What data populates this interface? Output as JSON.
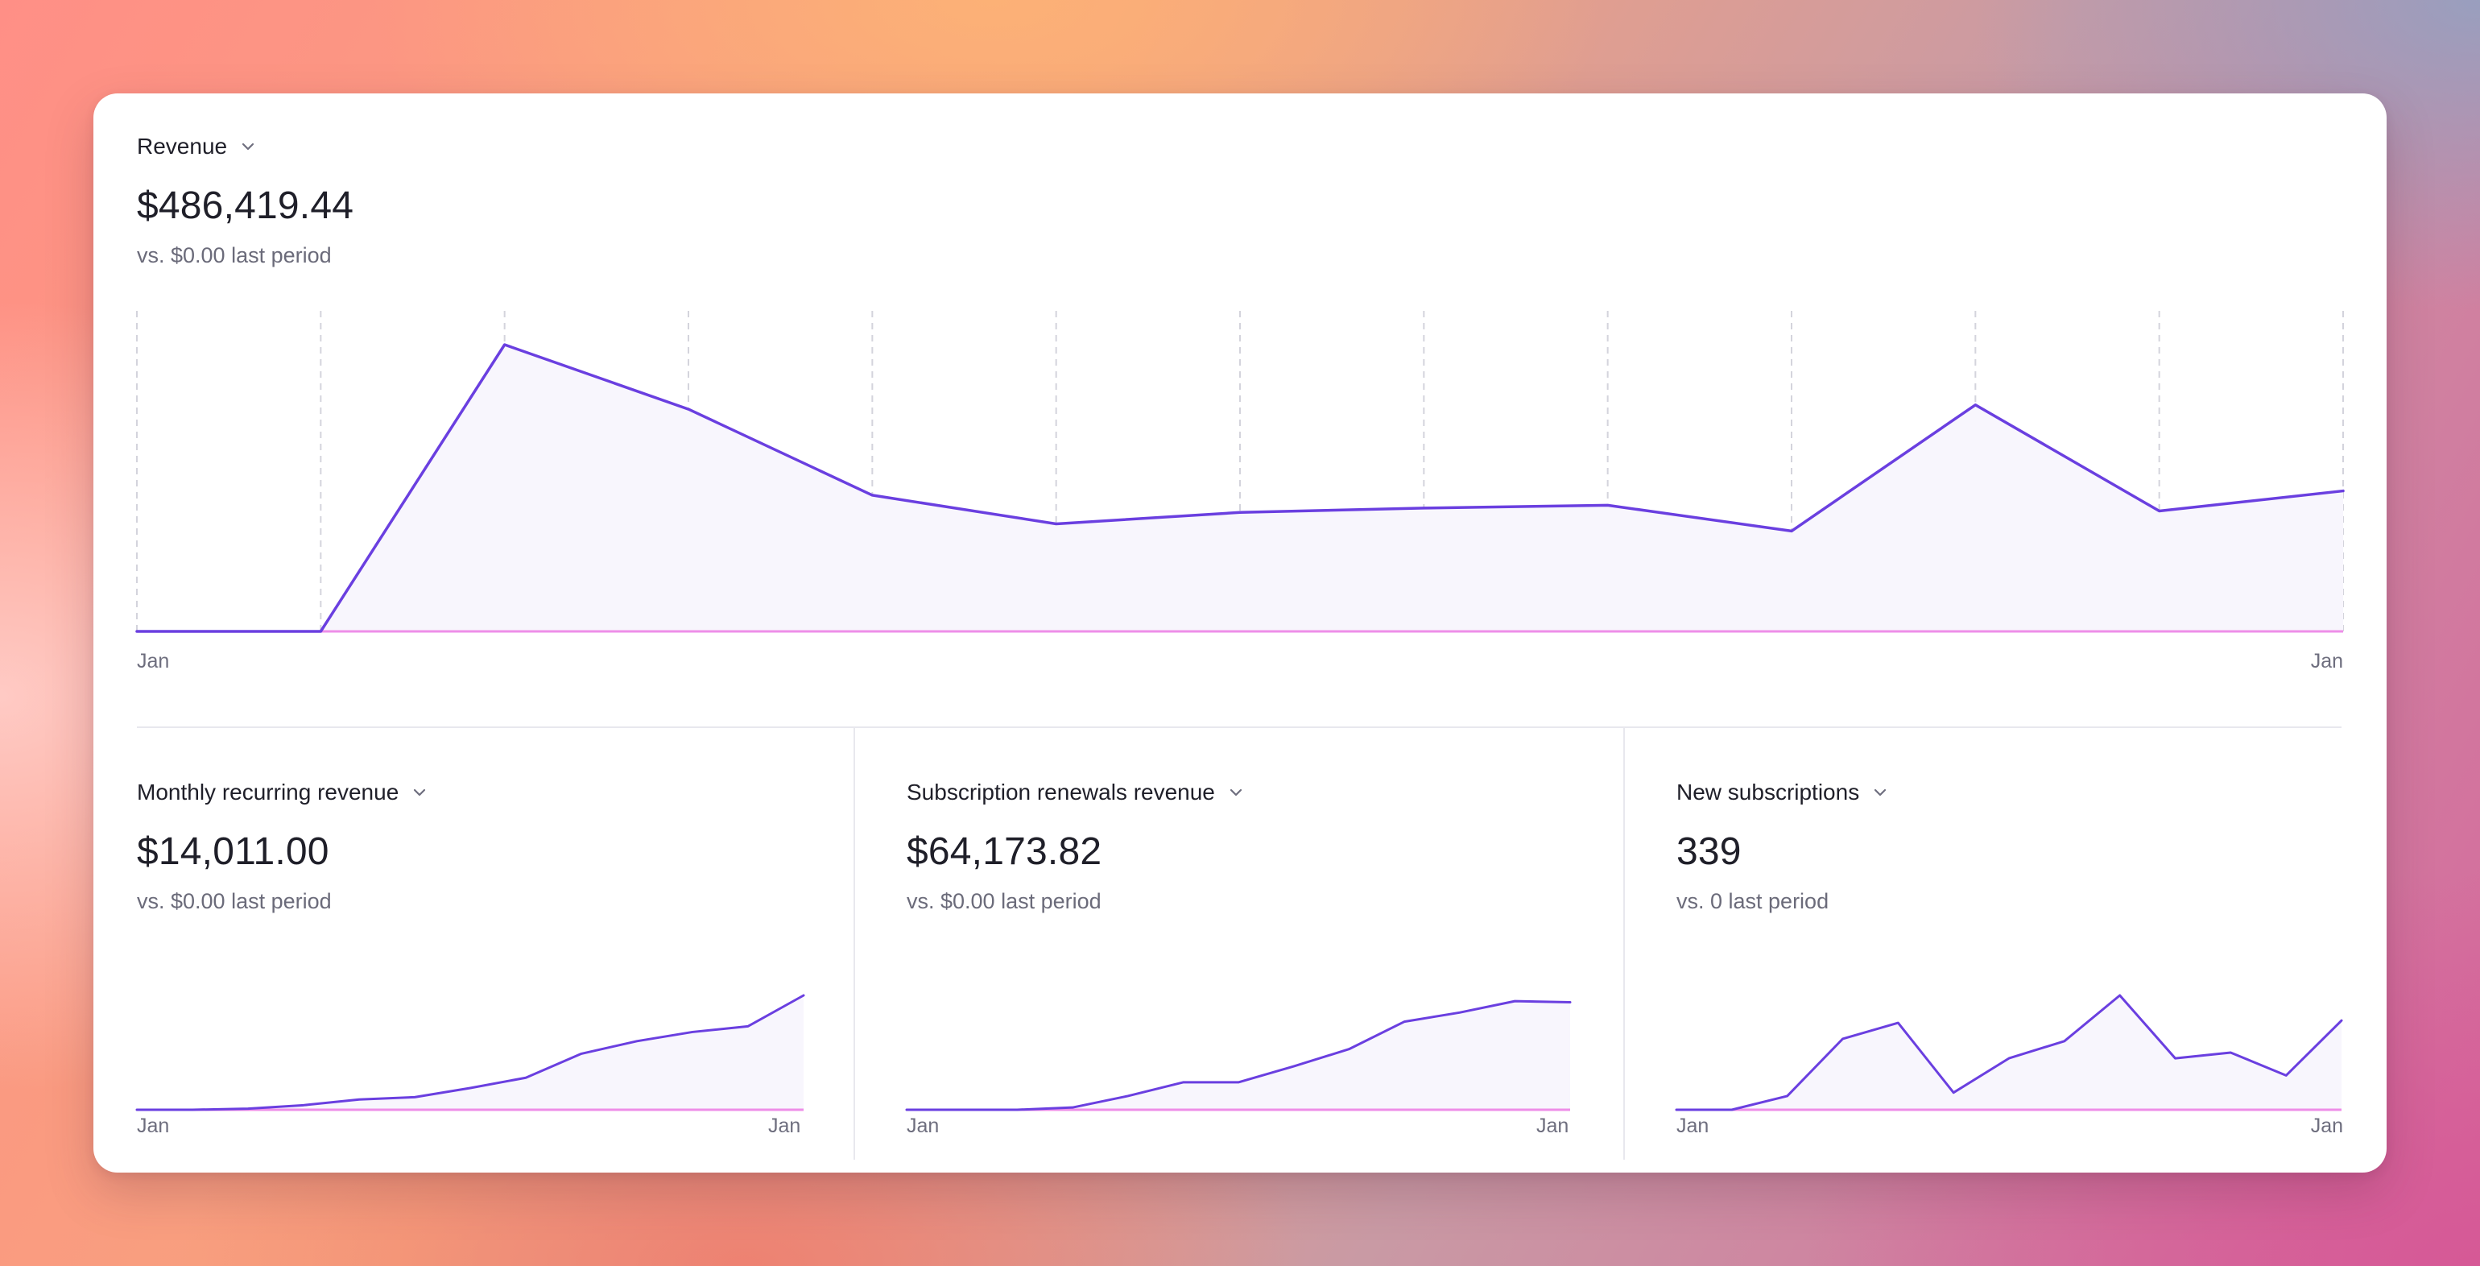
{
  "colors": {
    "line": "#6a3fe0",
    "area": "#f8f6fd",
    "baseline": "#ee8ee8",
    "grid": "#d4d4dc"
  },
  "icons": {
    "dropdown": "chevron-down-icon"
  },
  "revenue": {
    "label": "Revenue",
    "value": "$486,419.44",
    "compare": "vs. $0.00 last period",
    "x_start": "Jan",
    "x_end": "Jan",
    "chart_data": {
      "type": "area",
      "values": [
        0,
        0,
        100,
        77.5,
        47.5,
        37.5,
        41.5,
        43,
        44,
        35,
        79,
        42,
        49
      ],
      "ylim": [
        0,
        100
      ],
      "grid": "vertical-dashed"
    }
  },
  "mrr": {
    "label": "Monthly recurring revenue",
    "value": "$14,011.00",
    "compare": "vs. $0.00 last period",
    "x_start": "Jan",
    "x_end": "Jan",
    "chart_data": {
      "type": "area",
      "values": [
        0,
        0,
        1,
        4,
        9,
        11,
        19,
        28,
        49,
        60,
        68,
        73,
        100
      ],
      "ylim": [
        0,
        100
      ]
    }
  },
  "renewals": {
    "label": "Subscription renewals revenue",
    "value": "$64,173.82",
    "compare": "vs. $0.00 last period",
    "x_start": "Jan",
    "x_end": "Jan",
    "chart_data": {
      "type": "area",
      "values": [
        0,
        0,
        0,
        2,
        12,
        24,
        24,
        38,
        53,
        77,
        85,
        95,
        94
      ],
      "ylim": [
        0,
        100
      ]
    }
  },
  "new_subs": {
    "label": "New subscriptions",
    "value": "339",
    "compare": "vs. 0 last period",
    "x_start": "Jan",
    "x_end": "Jan",
    "chart_data": {
      "type": "area",
      "values": [
        0,
        0,
        12,
        62,
        76,
        15,
        45,
        60,
        100,
        45,
        50,
        30,
        78
      ],
      "ylim": [
        0,
        100
      ]
    }
  }
}
